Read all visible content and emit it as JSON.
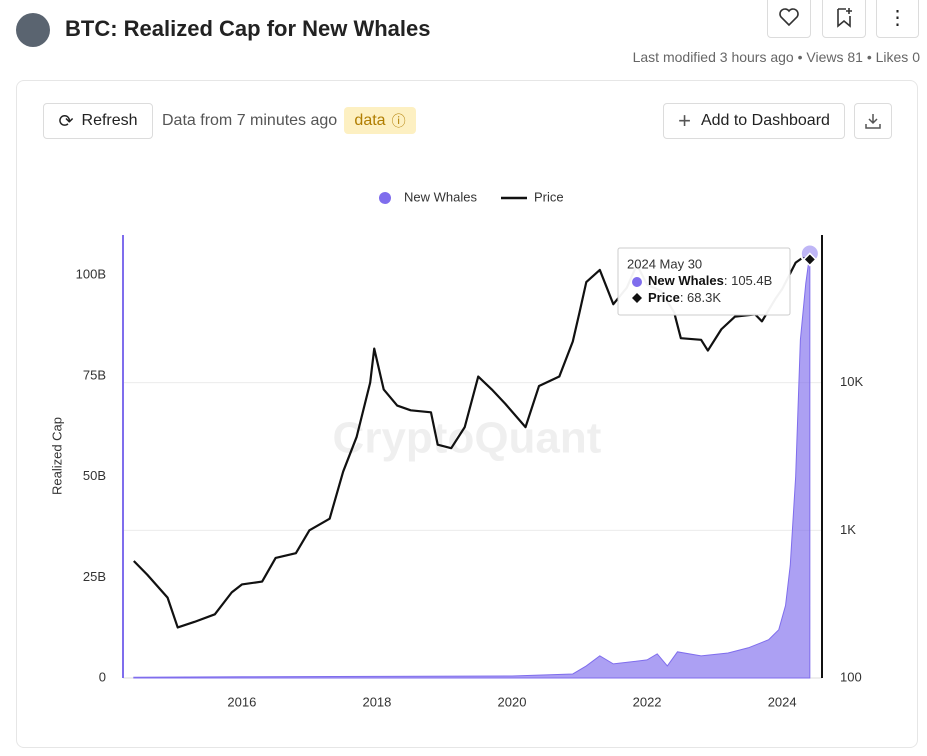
{
  "header": {
    "title": "BTC: Realized Cap for New Whales",
    "meta": "Last modified 3 hours ago • Views 81 • Likes 0"
  },
  "toolbar": {
    "refresh": "Refresh",
    "status": "Data from 7 minutes ago",
    "badge": "data",
    "add": "Add to Dashboard"
  },
  "chart_data": {
    "type": "area-line",
    "watermark": "CryptoQuant",
    "ylabel": "Realized Cap",
    "grid": true,
    "xlim": [
      2014.24,
      2024.59
    ],
    "xticks": [
      2016,
      2018,
      2020,
      2022,
      2024
    ],
    "ylim": [
      0,
      110
    ],
    "yticks": [
      0,
      {
        "value": 25,
        "label": "25B"
      },
      {
        "value": 50,
        "label": "50B"
      },
      {
        "value": 75,
        "label": "75B"
      },
      {
        "value": 100,
        "label": "100B"
      }
    ],
    "y2lim": [
      100,
      100000
    ],
    "y2scale": "log",
    "y2ticks": [
      100,
      {
        "value": 1000,
        "label": "1K"
      },
      {
        "value": 10000,
        "label": "10K"
      }
    ],
    "series": [
      {
        "name": "New Whales",
        "color": "#7f6ded",
        "kind": "area",
        "x": [
          2014.4,
          2016,
          2018,
          2020,
          2020.9,
          2021.1,
          2021.3,
          2021.5,
          2022.0,
          2022.15,
          2022.3,
          2022.45,
          2022.8,
          2023.2,
          2023.5,
          2023.8,
          2023.95,
          2024.05,
          2024.12,
          2024.2,
          2024.27,
          2024.35,
          2024.41
        ],
        "values": [
          0.2,
          0.3,
          0.4,
          0.5,
          1,
          3,
          5.5,
          3.5,
          4.5,
          6,
          3,
          6.5,
          5.5,
          6.2,
          7.5,
          9.5,
          12,
          18,
          28,
          50,
          84,
          98,
          105.4
        ]
      },
      {
        "name": "Price",
        "color": "#111111",
        "kind": "line",
        "axis": "y2",
        "x": [
          2014.4,
          2014.6,
          2014.9,
          2015.05,
          2015.3,
          2015.6,
          2015.85,
          2016.0,
          2016.3,
          2016.5,
          2016.8,
          2017.0,
          2017.3,
          2017.5,
          2017.7,
          2017.9,
          2017.96,
          2018.1,
          2018.3,
          2018.5,
          2018.8,
          2018.9,
          2019.1,
          2019.3,
          2019.5,
          2019.7,
          2019.9,
          2020.2,
          2020.4,
          2020.7,
          2020.9,
          2021.0,
          2021.1,
          2021.3,
          2021.5,
          2021.7,
          2021.85,
          2022.0,
          2022.2,
          2022.4,
          2022.5,
          2022.8,
          2022.9,
          2023.1,
          2023.3,
          2023.6,
          2023.7,
          2023.9,
          2024.0,
          2024.2,
          2024.3,
          2024.41
        ],
        "values": [
          620,
          500,
          350,
          220,
          240,
          270,
          380,
          430,
          450,
          650,
          700,
          1000,
          1200,
          2500,
          4300,
          10000,
          17000,
          9000,
          7000,
          6500,
          6300,
          3800,
          3600,
          5000,
          11000,
          9000,
          7200,
          5000,
          9500,
          11000,
          19000,
          30000,
          48000,
          58000,
          34000,
          44000,
          63000,
          46000,
          42000,
          30000,
          20000,
          19500,
          16500,
          23000,
          28000,
          29000,
          26000,
          37000,
          43000,
          65000,
          70000,
          68300
        ]
      }
    ],
    "tooltip": {
      "title": "2024 May 30",
      "values": [
        105.4,
        68300
      ],
      "value_labels": [
        "105.4B",
        "68.3K"
      ]
    }
  }
}
